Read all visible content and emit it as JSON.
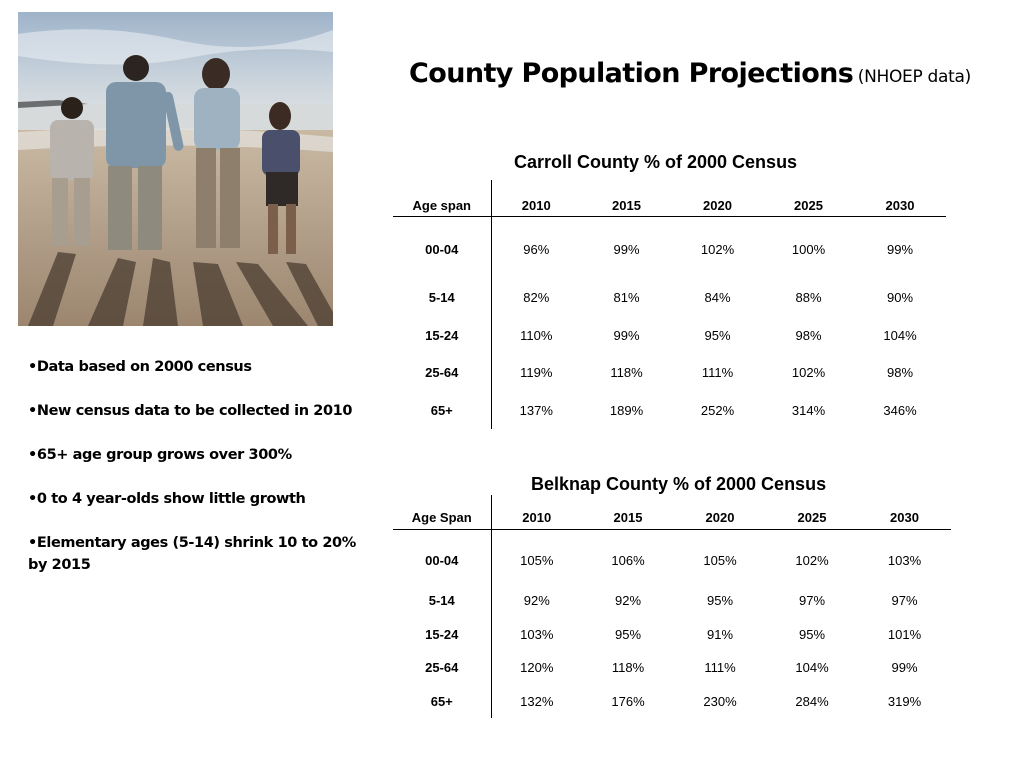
{
  "slide": {
    "title": "County Population Projections",
    "subtitle": "(NHOEP data)"
  },
  "photo": {
    "description": "family-holding-hands-on-beach"
  },
  "bullets": [
    "Data based on 2000 census",
    "New census data to be collected in  2010",
    "65+ age group grows over 300%",
    "0 to 4 year-olds show little growth",
    "Elementary ages (5-14) shrink 10 to 20% by 2015"
  ],
  "carroll": {
    "title": "Carroll County % of 2000 Census",
    "headers": [
      "Age span",
      "2010",
      "2015",
      "2020",
      "2025",
      "2030"
    ],
    "rows": [
      {
        "age": "00-04",
        "values": [
          "96%",
          "99%",
          "102%",
          "100%",
          "99%"
        ]
      },
      {
        "age": "5-14",
        "values": [
          "82%",
          "81%",
          "84%",
          "88%",
          "90%"
        ]
      },
      {
        "age": "15-24",
        "values": [
          "110%",
          "99%",
          "95%",
          "98%",
          "104%"
        ]
      },
      {
        "age": "25-64",
        "values": [
          "119%",
          "118%",
          "111%",
          "102%",
          "98%"
        ]
      },
      {
        "age": "65+",
        "values": [
          "137%",
          "189%",
          "252%",
          "314%",
          "346%"
        ]
      }
    ]
  },
  "belknap": {
    "title": "Belknap County % of 2000 Census",
    "headers": [
      "Age Span",
      "2010",
      "2015",
      "2020",
      "2025",
      "2030"
    ],
    "rows": [
      {
        "age": "00-04",
        "values": [
          "105%",
          "106%",
          "105%",
          "102%",
          "103%"
        ]
      },
      {
        "age": "5-14",
        "values": [
          "92%",
          "92%",
          "95%",
          "97%",
          "97%"
        ]
      },
      {
        "age": "15-24",
        "values": [
          "103%",
          "95%",
          "91%",
          "95%",
          "101%"
        ]
      },
      {
        "age": "25-64",
        "values": [
          "120%",
          "118%",
          "111%",
          "104%",
          "99%"
        ]
      },
      {
        "age": "65+",
        "values": [
          "132%",
          "176%",
          "230%",
          "284%",
          "319%"
        ]
      }
    ]
  }
}
